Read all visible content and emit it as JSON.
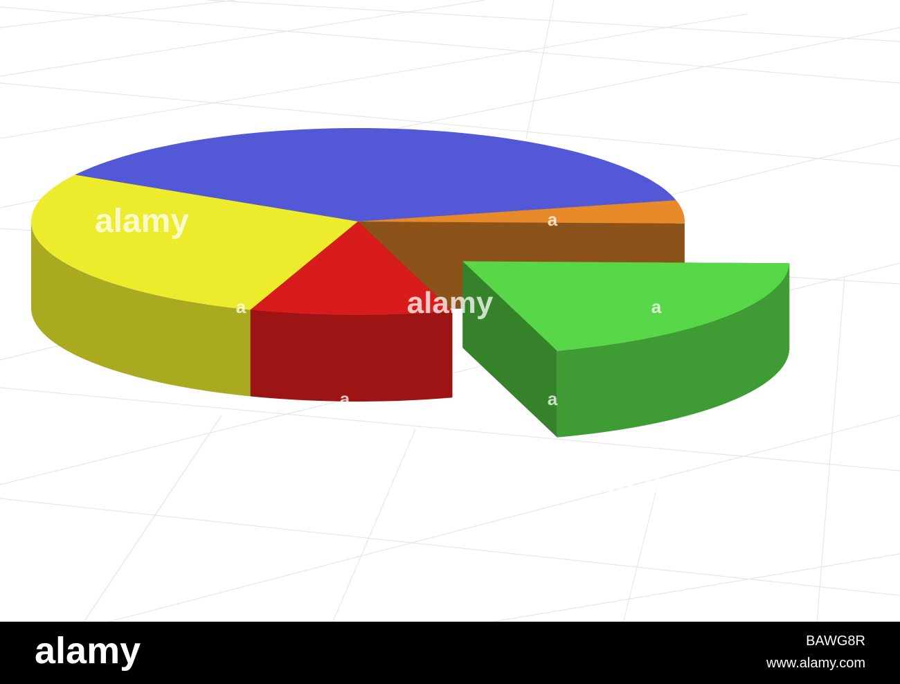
{
  "chart_data": {
    "type": "pie",
    "values": [
      38,
      4,
      20,
      10,
      28
    ],
    "colors": [
      "#5258d6",
      "#e88a2a",
      "#58d848",
      "#d81c1c",
      "#ecec2c"
    ],
    "exploded": [
      false,
      false,
      true,
      false,
      false
    ]
  },
  "watermark": {
    "logo": "alamy",
    "mark": "a"
  },
  "footer": {
    "logo": "alamy",
    "id": "BAWG8R",
    "url": "www.alamy.com"
  }
}
